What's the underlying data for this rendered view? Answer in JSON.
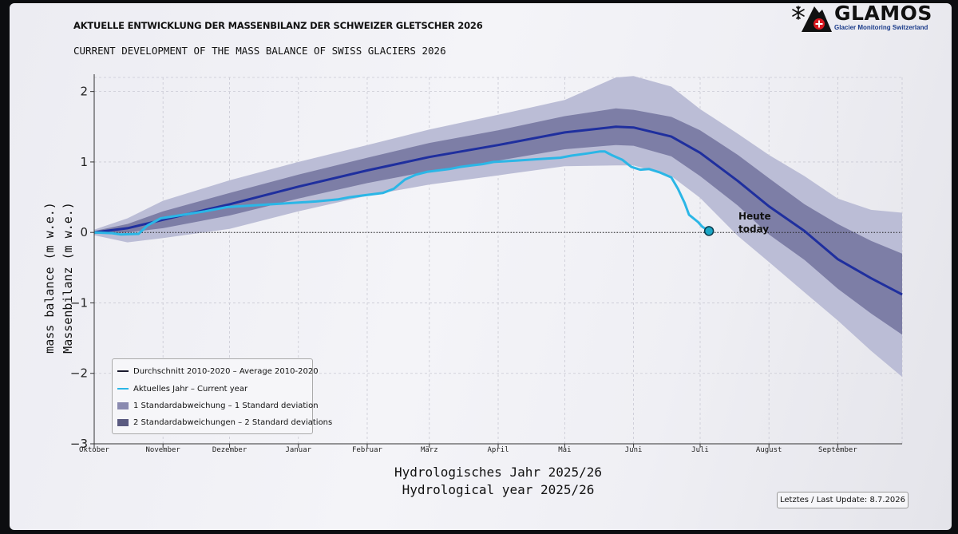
{
  "header": {
    "title_de": "AKTUELLE ENTWICKLUNG DER MASSENBILANZ DER SCHWEIZER GLETSCHER 2026",
    "title_en": "CURRENT DEVELOPMENT OF THE MASS BALANCE OF SWISS GLACIERS 2026"
  },
  "logo": {
    "name": "GLAMOS",
    "subtitle": "Glacier Monitoring Switzerland",
    "icons": [
      "snowflake-icon",
      "mountain-icon",
      "swiss-cross-icon"
    ]
  },
  "colors": {
    "average": "#1f2f9e",
    "current": "#2bb6e6",
    "band1": "#7d7ea6",
    "band2": "#bbbdd6",
    "marker": "#1ba7c6"
  },
  "today": {
    "line1": "Heute",
    "line2": "today"
  },
  "legend": {
    "position": "bottom-left",
    "items": [
      {
        "label": "Durchschnitt 2010-2020 – Average 2010-2020",
        "kind": "line",
        "color": "#1a1a2e"
      },
      {
        "label": "Aktuelles Jahr – Current year",
        "kind": "line",
        "color": "#2bb6e6"
      },
      {
        "label": "1 Standardabweichung – 1 Standard deviation",
        "kind": "patch",
        "color": "#8a8ab0"
      },
      {
        "label": "2 Standardabweichungen – 2 Standard deviations",
        "kind": "patch",
        "color": "#5a5a80"
      }
    ]
  },
  "footer": {
    "last_update": "Letztes / Last Update: 8.7.2026"
  },
  "chart_data": {
    "type": "area",
    "xlabel_de": "Hydrologisches Jahr 2025/26",
    "xlabel_en": "Hydrological year 2025/26",
    "ylabel_de": "Massenbilanz (m w.e.)",
    "ylabel_en": "mass balance (m w.e.)",
    "x_unit": "days since 1 October 2025",
    "xlim": [
      0,
      364
    ],
    "ylim": [
      -3,
      2.2
    ],
    "yticks": [
      2,
      1,
      0,
      -1,
      -2,
      -3
    ],
    "month_ticks": [
      {
        "label": "Oktober",
        "x": 0
      },
      {
        "label": "November",
        "x": 31
      },
      {
        "label": "Dezember",
        "x": 61
      },
      {
        "label": "Januar",
        "x": 92
      },
      {
        "label": "Februar",
        "x": 123
      },
      {
        "label": "März",
        "x": 151
      },
      {
        "label": "April",
        "x": 182
      },
      {
        "label": "Mai",
        "x": 212
      },
      {
        "label": "Juni",
        "x": 243
      },
      {
        "label": "Juli",
        "x": 273
      },
      {
        "label": "August",
        "x": 304
      },
      {
        "label": "September",
        "x": 335
      }
    ],
    "grid": true,
    "zero_line": "dotted",
    "x": [
      0,
      15,
      31,
      61,
      92,
      123,
      151,
      182,
      212,
      235,
      243,
      260,
      273,
      290,
      304,
      320,
      335,
      350,
      364
    ],
    "series": [
      {
        "name": "Durchschnitt 2010-2020 – Average 2010-2020",
        "values": [
          0,
          0.06,
          0.18,
          0.4,
          0.65,
          0.88,
          1.07,
          1.24,
          1.42,
          1.5,
          1.49,
          1.36,
          1.13,
          0.73,
          0.37,
          0.02,
          -0.38,
          -0.65,
          -0.88
        ]
      },
      {
        "name": "Aktuelles Jahr – Current year",
        "x": [
          0,
          8,
          12,
          20,
          24,
          30,
          40,
          50,
          60,
          70,
          80,
          90,
          100,
          110,
          115,
          120,
          130,
          135,
          140,
          145,
          150,
          155,
          160,
          165,
          170,
          175,
          180,
          190,
          200,
          210,
          215,
          222,
          228,
          230,
          233,
          238,
          242,
          246,
          250,
          255,
          260,
          263,
          266,
          268,
          272,
          274,
          277
        ],
        "values": [
          0,
          -0.01,
          -0.03,
          -0.02,
          0.1,
          0.2,
          0.25,
          0.3,
          0.36,
          0.38,
          0.4,
          0.42,
          0.44,
          0.47,
          0.5,
          0.52,
          0.56,
          0.62,
          0.75,
          0.82,
          0.86,
          0.88,
          0.9,
          0.93,
          0.95,
          0.97,
          1.0,
          1.02,
          1.04,
          1.06,
          1.09,
          1.12,
          1.15,
          1.15,
          1.1,
          1.03,
          0.93,
          0.89,
          0.9,
          0.85,
          0.78,
          0.62,
          0.42,
          0.25,
          0.15,
          0.08,
          0.02
        ]
      }
    ],
    "bands": [
      {
        "name": "1 Standardabweichung – 1 Standard deviation",
        "upper": [
          0.02,
          0.12,
          0.3,
          0.56,
          0.82,
          1.06,
          1.27,
          1.45,
          1.65,
          1.76,
          1.74,
          1.64,
          1.45,
          1.1,
          0.77,
          0.4,
          0.12,
          -0.12,
          -0.3
        ],
        "lower": [
          -0.02,
          0.0,
          0.06,
          0.24,
          0.48,
          0.7,
          0.87,
          1.02,
          1.18,
          1.24,
          1.23,
          1.08,
          0.8,
          0.38,
          -0.03,
          -0.39,
          -0.8,
          -1.15,
          -1.45
        ]
      },
      {
        "name": "2 Standardabweichungen – 2 Standard deviations",
        "upper": [
          0.04,
          0.2,
          0.45,
          0.74,
          1.0,
          1.24,
          1.46,
          1.67,
          1.88,
          2.2,
          2.22,
          2.07,
          1.75,
          1.4,
          1.1,
          0.8,
          0.48,
          0.32,
          0.28
        ],
        "lower": [
          -0.04,
          -0.14,
          -0.08,
          0.05,
          0.3,
          0.52,
          0.68,
          0.81,
          0.94,
          0.95,
          0.95,
          0.8,
          0.49,
          -0.05,
          -0.42,
          -0.85,
          -1.25,
          -1.68,
          -2.05
        ]
      }
    ],
    "today_marker": {
      "x": 277,
      "y": 0.02
    }
  }
}
